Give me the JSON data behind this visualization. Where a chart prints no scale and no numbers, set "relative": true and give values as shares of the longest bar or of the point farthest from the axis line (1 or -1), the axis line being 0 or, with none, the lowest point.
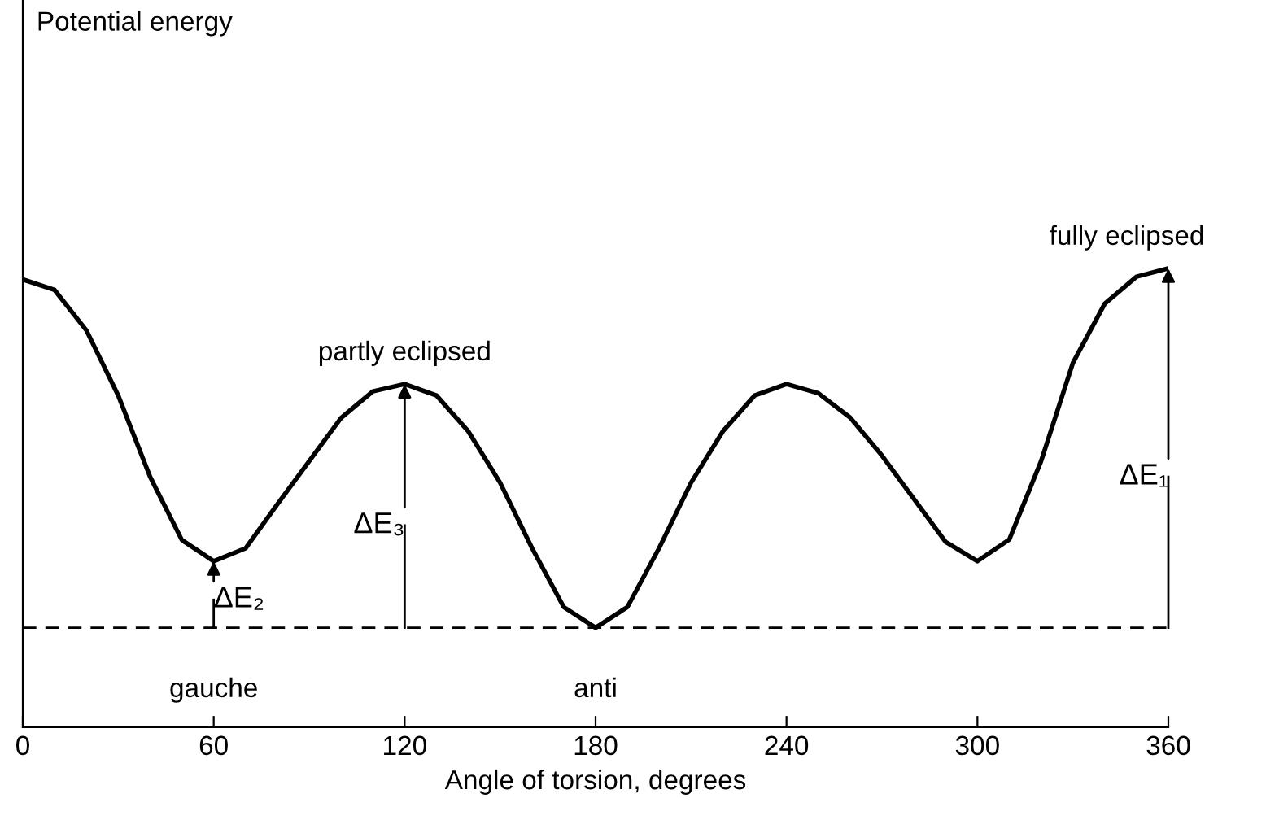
{
  "chart_data": {
    "type": "line",
    "relative": true,
    "xlabel": "Angle of torsion, degrees",
    "x": [
      0,
      10,
      20,
      30,
      40,
      50,
      60,
      70,
      80,
      90,
      100,
      110,
      120,
      130,
      140,
      150,
      160,
      170,
      180,
      190,
      200,
      210,
      220,
      230,
      240,
      250,
      260,
      270,
      280,
      290,
      300,
      310,
      320,
      330,
      340,
      350,
      360
    ],
    "xlim": [
      0,
      360
    ],
    "xticks": [
      0,
      60,
      120,
      180,
      240,
      300,
      360
    ],
    "series": [
      {
        "color": "#000000",
        "values": [
          0.976,
          0.953,
          0.865,
          0.723,
          0.546,
          0.408,
          0.362,
          0.39,
          0.486,
          0.58,
          0.674,
          0.732,
          0.748,
          0.723,
          0.645,
          0.533,
          0.391,
          0.262,
          0.217,
          0.262,
          0.391,
          0.533,
          0.645,
          0.723,
          0.748,
          0.728,
          0.675,
          0.592,
          0.498,
          0.404,
          0.362,
          0.409,
          0.58,
          0.794,
          0.923,
          0.982,
          1
        ]
      }
    ],
    "ref_lines": [
      {
        "axis": "y",
        "value": 0.217,
        "line_style": "dashed",
        "color": "#000000"
      }
    ],
    "annotations": [
      "Potential energy",
      {
        "text": "partly eclipsed",
        "x": 120,
        "y": 0.748
      },
      {
        "text": "fully eclipsed",
        "x": 360,
        "y": 1
      },
      {
        "text": "gauche",
        "x": 60,
        "y": 0.217
      },
      {
        "text": "anti",
        "x": 180,
        "y": 0.217
      },
      {
        "text": "ΔE₂",
        "x": 60,
        "y": 0.362
      },
      {
        "text": "ΔE₃",
        "x": 120,
        "y": 0.748
      },
      {
        "text": "ΔE₁",
        "x": 360,
        "y": 1
      }
    ],
    "grid": false,
    "marker": "none",
    "line_style": "solid"
  }
}
